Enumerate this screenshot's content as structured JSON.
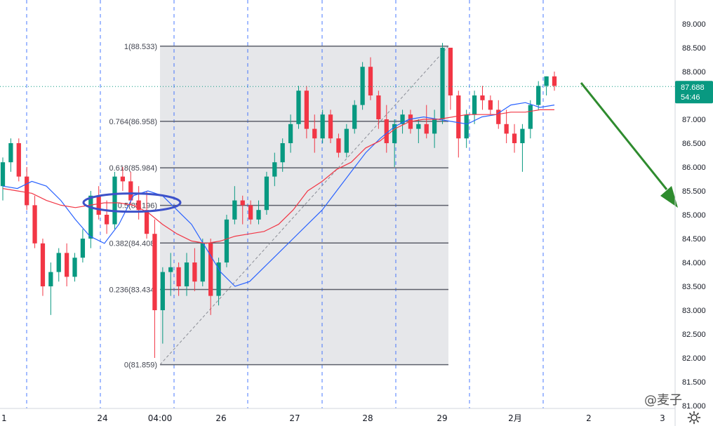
{
  "chart_data": {
    "type": "candlestick",
    "price_axis": {
      "ticks": [
        "89.000",
        "88.500",
        "88.000",
        "87.500",
        "87.000",
        "86.500",
        "86.000",
        "85.500",
        "85.000",
        "84.500",
        "84.000",
        "83.500",
        "83.000",
        "82.500",
        "82.000",
        "81.500",
        "81.000"
      ],
      "values": [
        89.0,
        88.5,
        88.0,
        87.5,
        87.0,
        86.5,
        86.0,
        85.5,
        85.0,
        84.5,
        84.0,
        83.5,
        83.0,
        82.5,
        82.0,
        81.5,
        81.0
      ],
      "range": [
        81.0,
        89.5
      ]
    },
    "time_axis": {
      "labels": [
        "1",
        "24",
        "04:00",
        "26",
        "27",
        "28",
        "29",
        "2月",
        "2",
        "3"
      ]
    },
    "last_price": {
      "value": 87.688,
      "label": "87.688",
      "countdown": "54:46",
      "color": "#089981"
    },
    "fibonacci": {
      "levels": [
        {
          "label": "1(88.533)",
          "value": 88.533
        },
        {
          "label": "0.764(86.958)",
          "value": 86.958
        },
        {
          "label": "0.618(85.984)",
          "value": 85.984
        },
        {
          "label": "0.5(85.196)",
          "value": 85.196
        },
        {
          "label": "0.382(84.408)",
          "value": 84.408
        },
        {
          "label": "0.236(83.434)",
          "value": 83.434
        },
        {
          "label": "0(81.859)",
          "value": 81.859
        }
      ],
      "fill": "#e6e7ea"
    },
    "series": [
      {
        "kind": "moving-average",
        "color": "#2962ff",
        "values": [
          85.6,
          85.55,
          85.7,
          85.6,
          85.3,
          84.9,
          84.55,
          84.4,
          84.8,
          85.4,
          85.5,
          85.4,
          85.1,
          84.8,
          84.3,
          83.8,
          83.5,
          83.6,
          83.9,
          84.2,
          84.5,
          84.8,
          85.1,
          85.5,
          85.9,
          86.3,
          86.6,
          86.85,
          87.0,
          87.05,
          87.0,
          86.95,
          86.9,
          87.05,
          87.1,
          87.3,
          87.35,
          87.25,
          87.3
        ]
      },
      {
        "kind": "moving-average",
        "color": "#f23645",
        "values": [
          85.55,
          85.5,
          85.45,
          85.3,
          85.2,
          85.15,
          85.2,
          85.25,
          85.25,
          85.2,
          85.05,
          84.8,
          84.6,
          84.45,
          84.4,
          84.45,
          84.55,
          84.6,
          84.65,
          84.8,
          85.1,
          85.5,
          85.7,
          85.95,
          86.1,
          86.4,
          86.55,
          86.8,
          86.95,
          87.0,
          87.0,
          87.05,
          87.1,
          87.1,
          87.1,
          87.15,
          87.15,
          87.2,
          87.2
        ]
      }
    ],
    "candles": [
      {
        "o": 85.6,
        "h": 86.2,
        "l": 85.3,
        "c": 86.1
      },
      {
        "o": 86.1,
        "h": 86.6,
        "l": 85.9,
        "c": 86.5
      },
      {
        "o": 86.5,
        "h": 86.6,
        "l": 85.7,
        "c": 85.8
      },
      {
        "o": 85.8,
        "h": 86.0,
        "l": 85.1,
        "c": 85.2
      },
      {
        "o": 85.2,
        "h": 85.4,
        "l": 84.3,
        "c": 84.4
      },
      {
        "o": 84.4,
        "h": 84.5,
        "l": 83.3,
        "c": 83.5
      },
      {
        "o": 83.5,
        "h": 84.0,
        "l": 82.9,
        "c": 83.8
      },
      {
        "o": 83.8,
        "h": 84.3,
        "l": 83.6,
        "c": 84.2
      },
      {
        "o": 84.2,
        "h": 84.4,
        "l": 83.5,
        "c": 83.7
      },
      {
        "o": 83.7,
        "h": 84.2,
        "l": 83.6,
        "c": 84.1
      },
      {
        "o": 84.1,
        "h": 84.7,
        "l": 84.0,
        "c": 84.5
      },
      {
        "o": 84.5,
        "h": 85.5,
        "l": 84.3,
        "c": 85.4
      },
      {
        "o": 85.4,
        "h": 85.6,
        "l": 84.9,
        "c": 85.0
      },
      {
        "o": 85.0,
        "h": 85.3,
        "l": 84.6,
        "c": 84.8
      },
      {
        "o": 84.8,
        "h": 85.9,
        "l": 84.7,
        "c": 85.8
      },
      {
        "o": 85.8,
        "h": 86.0,
        "l": 85.5,
        "c": 85.7
      },
      {
        "o": 85.7,
        "h": 85.9,
        "l": 85.2,
        "c": 85.3
      },
      {
        "o": 85.3,
        "h": 85.6,
        "l": 84.9,
        "c": 85.1
      },
      {
        "o": 85.1,
        "h": 85.5,
        "l": 84.5,
        "c": 84.6
      },
      {
        "o": 84.6,
        "h": 84.9,
        "l": 82.0,
        "c": 83.0
      },
      {
        "o": 83.0,
        "h": 83.9,
        "l": 82.3,
        "c": 83.8
      },
      {
        "o": 83.8,
        "h": 84.2,
        "l": 83.3,
        "c": 83.9
      },
      {
        "o": 83.9,
        "h": 84.0,
        "l": 83.3,
        "c": 83.5
      },
      {
        "o": 83.5,
        "h": 84.2,
        "l": 83.3,
        "c": 84.0
      },
      {
        "o": 84.0,
        "h": 84.3,
        "l": 83.4,
        "c": 83.6
      },
      {
        "o": 83.6,
        "h": 84.5,
        "l": 83.5,
        "c": 84.4
      },
      {
        "o": 84.4,
        "h": 84.5,
        "l": 82.9,
        "c": 83.3
      },
      {
        "o": 83.3,
        "h": 84.1,
        "l": 83.1,
        "c": 84.0
      },
      {
        "o": 84.0,
        "h": 85.0,
        "l": 83.9,
        "c": 84.9
      },
      {
        "o": 84.9,
        "h": 85.6,
        "l": 84.8,
        "c": 85.3
      },
      {
        "o": 85.3,
        "h": 85.4,
        "l": 84.8,
        "c": 85.2
      },
      {
        "o": 85.2,
        "h": 85.3,
        "l": 84.8,
        "c": 84.9
      },
      {
        "o": 84.9,
        "h": 85.3,
        "l": 84.8,
        "c": 85.1
      },
      {
        "o": 85.1,
        "h": 85.9,
        "l": 85.0,
        "c": 85.8
      },
      {
        "o": 85.8,
        "h": 86.3,
        "l": 85.6,
        "c": 86.1
      },
      {
        "o": 86.1,
        "h": 86.6,
        "l": 85.9,
        "c": 86.5
      },
      {
        "o": 86.5,
        "h": 87.1,
        "l": 86.3,
        "c": 86.9
      },
      {
        "o": 86.9,
        "h": 87.7,
        "l": 86.8,
        "c": 87.6
      },
      {
        "o": 87.6,
        "h": 87.7,
        "l": 86.6,
        "c": 86.8
      },
      {
        "o": 86.8,
        "h": 87.1,
        "l": 86.3,
        "c": 86.6
      },
      {
        "o": 86.6,
        "h": 87.2,
        "l": 86.5,
        "c": 87.1
      },
      {
        "o": 87.1,
        "h": 87.2,
        "l": 86.5,
        "c": 86.6
      },
      {
        "o": 86.6,
        "h": 86.7,
        "l": 86.2,
        "c": 86.3
      },
      {
        "o": 86.3,
        "h": 86.9,
        "l": 86.2,
        "c": 86.8
      },
      {
        "o": 86.8,
        "h": 87.4,
        "l": 86.7,
        "c": 87.3
      },
      {
        "o": 87.3,
        "h": 88.2,
        "l": 87.2,
        "c": 88.1
      },
      {
        "o": 88.1,
        "h": 88.3,
        "l": 87.4,
        "c": 87.5
      },
      {
        "o": 87.5,
        "h": 87.6,
        "l": 86.8,
        "c": 87.0
      },
      {
        "o": 87.0,
        "h": 87.3,
        "l": 86.3,
        "c": 86.5
      },
      {
        "o": 86.5,
        "h": 87.0,
        "l": 86.0,
        "c": 86.9
      },
      {
        "o": 86.9,
        "h": 87.2,
        "l": 86.7,
        "c": 87.1
      },
      {
        "o": 87.1,
        "h": 87.2,
        "l": 86.7,
        "c": 86.8
      },
      {
        "o": 86.8,
        "h": 87.0,
        "l": 86.5,
        "c": 86.9
      },
      {
        "o": 86.9,
        "h": 87.3,
        "l": 86.6,
        "c": 86.7
      },
      {
        "o": 86.7,
        "h": 87.2,
        "l": 86.4,
        "c": 87.0
      },
      {
        "o": 87.0,
        "h": 88.6,
        "l": 86.9,
        "c": 88.5
      },
      {
        "o": 88.5,
        "h": 88.5,
        "l": 87.2,
        "c": 87.5
      },
      {
        "o": 87.5,
        "h": 87.6,
        "l": 86.2,
        "c": 86.6
      },
      {
        "o": 86.6,
        "h": 87.2,
        "l": 86.4,
        "c": 87.1
      },
      {
        "o": 87.1,
        "h": 87.6,
        "l": 86.9,
        "c": 87.5
      },
      {
        "o": 87.5,
        "h": 87.7,
        "l": 87.2,
        "c": 87.4
      },
      {
        "o": 87.4,
        "h": 87.5,
        "l": 87.1,
        "c": 87.2
      },
      {
        "o": 87.2,
        "h": 87.4,
        "l": 86.8,
        "c": 86.9
      },
      {
        "o": 86.9,
        "h": 87.2,
        "l": 86.5,
        "c": 86.7
      },
      {
        "o": 86.7,
        "h": 86.9,
        "l": 86.3,
        "c": 86.5
      },
      {
        "o": 86.5,
        "h": 86.9,
        "l": 85.9,
        "c": 86.8
      },
      {
        "o": 86.8,
        "h": 87.4,
        "l": 86.6,
        "c": 87.3
      },
      {
        "o": 87.3,
        "h": 87.8,
        "l": 87.2,
        "c": 87.7
      },
      {
        "o": 87.7,
        "h": 87.9,
        "l": 87.5,
        "c": 87.9
      },
      {
        "o": 87.9,
        "h": 88.0,
        "l": 87.6,
        "c": 87.7
      }
    ]
  },
  "watermark": "@麦子"
}
